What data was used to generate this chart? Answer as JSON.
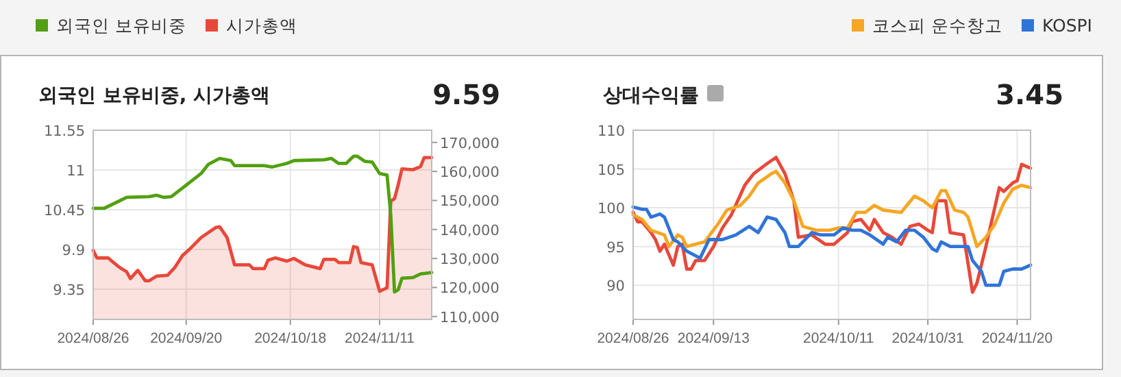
{
  "chart_data": [
    {
      "type": "line",
      "title": "외국인 보유비중, 시가총액",
      "annotations": [
        "9.59"
      ],
      "legend": "top left",
      "grid": true,
      "xlim": [
        "2024-08-26",
        "2024-11-25"
      ],
      "xticks": [
        {
          "value": "2024-08-26",
          "label": "2024/08/26"
        },
        {
          "value": "2024-09-20",
          "label": "2024/09/20"
        },
        {
          "value": "2024-10-18",
          "label": "2024/10/18"
        },
        {
          "value": "2024-11-11",
          "label": "2024/11/11"
        }
      ],
      "ylim": [
        8.93,
        11.55
      ],
      "yticks": [
        11.55,
        11,
        10.45,
        9.9,
        9.35
      ],
      "y2lim": [
        109000,
        174200
      ],
      "y2ticks": [
        {
          "value": 170000,
          "label": "170,000"
        },
        {
          "value": 160000,
          "label": "160,000"
        },
        {
          "value": 150000,
          "label": "150,000"
        },
        {
          "value": 140000,
          "label": "140,000"
        },
        {
          "value": 130000,
          "label": "130,000"
        },
        {
          "value": 120000,
          "label": "120,000"
        },
        {
          "value": 110000,
          "label": "110,000"
        }
      ],
      "series": [
        {
          "name": "외국인 보유비중",
          "color": "#52a010",
          "x": [
            "2024-08-26",
            "2024-08-29",
            "2024-09-02",
            "2024-09-04",
            "2024-09-10",
            "2024-09-12",
            "2024-09-14",
            "2024-09-16",
            "2024-09-20",
            "2024-09-24",
            "2024-09-26",
            "2024-09-29",
            "2024-10-02",
            "2024-10-03",
            "2024-10-11",
            "2024-10-13",
            "2024-10-17",
            "2024-10-19",
            "2024-10-27",
            "2024-10-29",
            "2024-10-31",
            "2024-11-02",
            "2024-11-04",
            "2024-11-05",
            "2024-11-07",
            "2024-11-09",
            "2024-11-11",
            "2024-11-13",
            "2024-11-14",
            "2024-11-15",
            "2024-11-16",
            "2024-11-17",
            "2024-11-20",
            "2024-11-22",
            "2024-11-25"
          ],
          "values": [
            10.47,
            10.47,
            10.57,
            10.62,
            10.63,
            10.65,
            10.62,
            10.63,
            10.79,
            10.95,
            11.08,
            11.16,
            11.13,
            11.06,
            11.06,
            11.04,
            11.09,
            11.13,
            11.14,
            11.16,
            11.09,
            11.09,
            11.19,
            11.19,
            11.12,
            11.11,
            10.95,
            10.93,
            10.38,
            9.31,
            9.34,
            9.5,
            9.51,
            9.56,
            9.58
          ]
        },
        {
          "name": "시가총액",
          "type": "area",
          "axis": "y2",
          "color": "#e8483a",
          "x": [
            "2024-08-26",
            "2024-08-27",
            "2024-08-30",
            "2024-09-02",
            "2024-09-04",
            "2024-09-05",
            "2024-09-07",
            "2024-09-09",
            "2024-09-10",
            "2024-09-12",
            "2024-09-15",
            "2024-09-17",
            "2024-09-19",
            "2024-09-21",
            "2024-09-24",
            "2024-09-28",
            "2024-09-29",
            "2024-10-01",
            "2024-10-02",
            "2024-10-03",
            "2024-10-07",
            "2024-10-08",
            "2024-10-11",
            "2024-10-12",
            "2024-10-14",
            "2024-10-17",
            "2024-10-19",
            "2024-10-22",
            "2024-10-26",
            "2024-10-27",
            "2024-10-30",
            "2024-10-31",
            "2024-11-03",
            "2024-11-04",
            "2024-11-05",
            "2024-11-06",
            "2024-11-09",
            "2024-11-11",
            "2024-11-13",
            "2024-11-14",
            "2024-11-15",
            "2024-11-16",
            "2024-11-17",
            "2024-11-20",
            "2024-11-22",
            "2024-11-23",
            "2024-11-25"
          ],
          "values": [
            132800,
            130200,
            130200,
            127000,
            125400,
            123100,
            125900,
            122300,
            122300,
            123900,
            124200,
            127000,
            131000,
            133300,
            137200,
            140700,
            140900,
            137200,
            132500,
            127800,
            127800,
            126500,
            126500,
            129400,
            130200,
            129100,
            130000,
            127800,
            126500,
            129700,
            129700,
            128600,
            128600,
            134100,
            133800,
            128600,
            127800,
            118700,
            119900,
            149800,
            150600,
            155400,
            160900,
            160600,
            161700,
            164800,
            164800
          ]
        }
      ]
    },
    {
      "type": "line",
      "title": "상대수익률",
      "annotations": [
        "3.45"
      ],
      "legend": "top right",
      "grid": true,
      "xlim": [
        "2024-08-26",
        "2024-11-23"
      ],
      "xticks": [
        {
          "value": "2024-08-26",
          "label": "2024/08/26"
        },
        {
          "value": "2024-09-13",
          "label": "2024/09/13"
        },
        {
          "value": "2024-10-11",
          "label": "2024/10/11"
        },
        {
          "value": "2024-10-31",
          "label": "2024/10/31"
        },
        {
          "value": "2024-11-20",
          "label": "2024/11/20"
        }
      ],
      "ylim": [
        85.6,
        110
      ],
      "yticks": [
        110,
        105,
        100,
        95,
        90
      ],
      "series": [
        {
          "color": "#e8483a",
          "x": [
            "2024-08-26",
            "2024-08-27",
            "2024-08-28",
            "2024-08-30",
            "2024-08-31",
            "2024-09-01",
            "2024-09-02",
            "2024-09-04",
            "2024-09-05",
            "2024-09-06",
            "2024-09-07",
            "2024-09-08",
            "2024-09-09",
            "2024-09-11",
            "2024-09-13",
            "2024-09-15",
            "2024-09-17",
            "2024-09-20",
            "2024-09-22",
            "2024-09-25",
            "2024-09-27",
            "2024-09-29",
            "2024-10-01",
            "2024-10-02",
            "2024-10-05",
            "2024-10-08",
            "2024-10-10",
            "2024-10-13",
            "2024-10-14",
            "2024-10-16",
            "2024-10-18",
            "2024-10-19",
            "2024-10-21",
            "2024-10-23",
            "2024-10-25",
            "2024-10-27",
            "2024-10-29",
            "2024-10-31",
            "2024-11-01",
            "2024-11-02",
            "2024-11-04",
            "2024-11-05",
            "2024-11-08",
            "2024-11-10",
            "2024-11-11",
            "2024-11-13",
            "2024-11-16",
            "2024-11-17",
            "2024-11-19",
            "2024-11-20",
            "2024-11-21",
            "2024-11-23"
          ],
          "values": [
            99.4,
            98.2,
            98.2,
            96.8,
            95.9,
            94.4,
            95.3,
            92.6,
            95.0,
            95.3,
            92.1,
            92.1,
            93.2,
            93.2,
            95.0,
            97.4,
            99.1,
            102.9,
            104.4,
            105.7,
            106.5,
            104.4,
            100.9,
            96.2,
            96.5,
            95.3,
            95.3,
            96.8,
            98.2,
            98.5,
            97.1,
            98.5,
            96.8,
            96.2,
            95.3,
            97.6,
            97.9,
            97.1,
            96.8,
            100.9,
            100.9,
            96.8,
            96.5,
            89.1,
            90.3,
            95.0,
            102.6,
            102.1,
            103.2,
            103.5,
            105.6,
            105.1
          ]
        },
        {
          "name": "코스피 운수창고",
          "color": "#f6a623",
          "x": [
            "2024-08-26",
            "2024-08-28",
            "2024-08-30",
            "2024-09-02",
            "2024-09-03",
            "2024-09-05",
            "2024-09-06",
            "2024-09-07",
            "2024-09-09",
            "2024-09-11",
            "2024-09-14",
            "2024-09-16",
            "2024-09-19",
            "2024-09-21",
            "2024-09-23",
            "2024-09-26",
            "2024-09-27",
            "2024-09-29",
            "2024-10-01",
            "2024-10-03",
            "2024-10-06",
            "2024-10-09",
            "2024-10-11",
            "2024-10-13",
            "2024-10-15",
            "2024-10-17",
            "2024-10-19",
            "2024-10-21",
            "2024-10-25",
            "2024-10-28",
            "2024-10-30",
            "2024-11-01",
            "2024-11-03",
            "2024-11-04",
            "2024-11-06",
            "2024-11-08",
            "2024-11-09",
            "2024-11-11",
            "2024-11-13",
            "2024-11-15",
            "2024-11-17",
            "2024-11-19",
            "2024-11-21",
            "2024-11-23"
          ],
          "values": [
            99.1,
            98.5,
            97.1,
            96.5,
            95.0,
            96.5,
            96.2,
            95.0,
            95.3,
            95.6,
            97.9,
            99.7,
            100.3,
            101.5,
            103.2,
            104.4,
            104.7,
            103.2,
            100.9,
            97.6,
            97.1,
            97.1,
            97.4,
            97.4,
            99.4,
            99.4,
            100.3,
            99.7,
            99.4,
            101.5,
            100.9,
            100.0,
            102.2,
            102.2,
            99.7,
            99.4,
            98.8,
            95.0,
            96.2,
            97.9,
            100.6,
            102.4,
            102.9,
            102.6
          ]
        },
        {
          "name": "KOSPI",
          "color": "#2f74d8",
          "x": [
            "2024-08-26",
            "2024-08-28",
            "2024-08-29",
            "2024-08-30",
            "2024-09-01",
            "2024-09-02",
            "2024-09-04",
            "2024-09-05",
            "2024-09-07",
            "2024-09-09",
            "2024-09-10",
            "2024-09-12",
            "2024-09-15",
            "2024-09-18",
            "2024-09-21",
            "2024-09-23",
            "2024-09-25",
            "2024-09-27",
            "2024-09-29",
            "2024-09-30",
            "2024-10-02",
            "2024-10-05",
            "2024-10-07",
            "2024-10-10",
            "2024-10-12",
            "2024-10-14",
            "2024-10-16",
            "2024-10-18",
            "2024-10-21",
            "2024-10-22",
            "2024-10-24",
            "2024-10-26",
            "2024-10-28",
            "2024-10-30",
            "2024-11-01",
            "2024-11-02",
            "2024-11-03",
            "2024-11-05",
            "2024-11-09",
            "2024-11-10",
            "2024-11-12",
            "2024-11-13",
            "2024-11-16",
            "2024-11-17",
            "2024-11-19",
            "2024-11-21",
            "2024-11-23"
          ],
          "values": [
            100.1,
            99.8,
            99.8,
            98.8,
            99.2,
            98.8,
            95.9,
            95.6,
            94.4,
            93.8,
            93.5,
            95.9,
            95.9,
            96.5,
            97.6,
            96.8,
            98.8,
            98.5,
            96.8,
            95.0,
            95.0,
            96.8,
            96.5,
            96.5,
            97.4,
            97.1,
            97.1,
            96.5,
            95.3,
            96.2,
            95.6,
            97.1,
            97.1,
            96.2,
            94.7,
            94.4,
            95.6,
            95.0,
            95.0,
            93.2,
            91.8,
            90.0,
            90.0,
            91.8,
            92.1,
            92.1,
            92.6
          ]
        }
      ]
    }
  ]
}
